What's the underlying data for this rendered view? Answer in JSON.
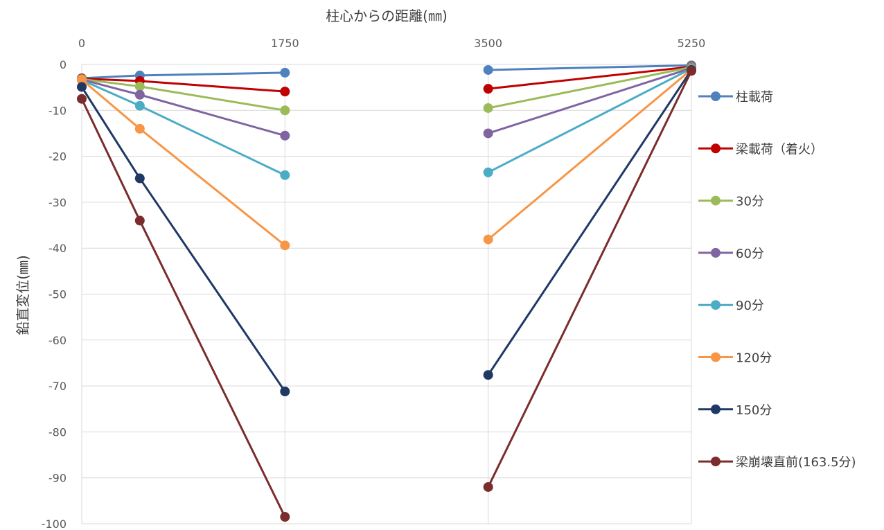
{
  "chart_data": {
    "type": "line",
    "xlabel": "柱心からの距離(㎜)",
    "ylabel": "鉛直変位(㎜)",
    "x": [
      0,
      500,
      1750,
      3500,
      5250
    ],
    "xticks": [
      0,
      1750,
      3500,
      5250
    ],
    "xlim": [
      0,
      5250
    ],
    "ylim": [
      -100,
      0
    ],
    "yticks": [
      0,
      -10,
      -20,
      -30,
      -40,
      -50,
      -60,
      -70,
      -80,
      -90,
      -100
    ],
    "x_axis_position": "top",
    "grid": true,
    "legend_position": "right",
    "series": [
      {
        "name": "柱載荷",
        "color": "#4f81bd",
        "values": [
          -3.0,
          -2.4,
          -1.8,
          -1.2,
          -0.2
        ]
      },
      {
        "name": "梁載荷（着火）",
        "color": "#c00000",
        "values": [
          -3.1,
          -3.6,
          -5.9,
          -5.3,
          -0.5
        ]
      },
      {
        "name": "30分",
        "color": "#9bbb59",
        "values": [
          -3.2,
          -4.8,
          -10.0,
          -9.5,
          -0.6
        ]
      },
      {
        "name": "60分",
        "color": "#8064a2",
        "values": [
          -3.3,
          -6.6,
          -15.5,
          -15.0,
          -0.8
        ]
      },
      {
        "name": "90分",
        "color": "#4bacc6",
        "values": [
          -3.4,
          -9.0,
          -24.1,
          -23.5,
          -0.9
        ]
      },
      {
        "name": "120分",
        "color": "#f79646",
        "values": [
          -3.3,
          -14.0,
          -39.4,
          -38.1,
          -1.1
        ]
      },
      {
        "name": "150分",
        "color": "#1f3864",
        "values": [
          -4.9,
          -24.8,
          -71.2,
          -67.6,
          -1.2
        ]
      },
      {
        "name": "梁崩壊直前(163.5分)",
        "color": "#7b2c2c",
        "values": [
          -7.5,
          -34.0,
          -98.5,
          -92.0,
          -1.4
        ]
      }
    ]
  }
}
